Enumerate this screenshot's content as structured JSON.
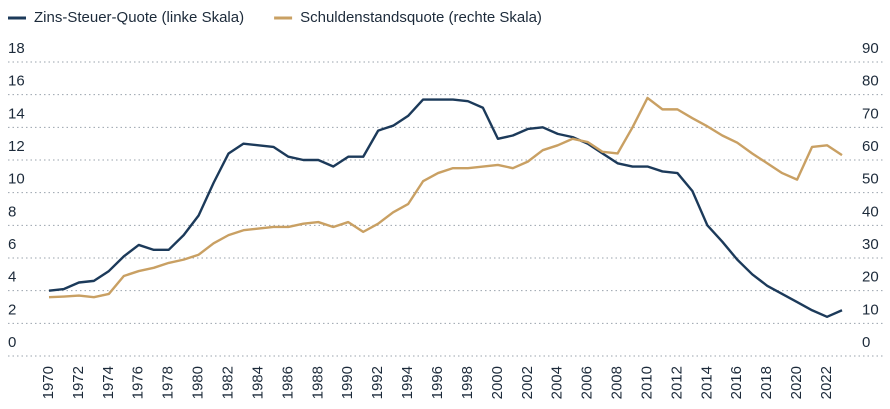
{
  "chart_data": {
    "type": "line",
    "x": [
      1970,
      1971,
      1972,
      1973,
      1974,
      1975,
      1976,
      1977,
      1978,
      1979,
      1980,
      1981,
      1982,
      1983,
      1984,
      1985,
      1986,
      1987,
      1988,
      1989,
      1990,
      1991,
      1992,
      1993,
      1994,
      1995,
      1996,
      1997,
      1998,
      1999,
      2000,
      2001,
      2002,
      2003,
      2004,
      2005,
      2006,
      2007,
      2008,
      2009,
      2010,
      2011,
      2012,
      2013,
      2014,
      2015,
      2016,
      2017,
      2018,
      2019,
      2020,
      2021,
      2022,
      2023
    ],
    "xlim": [
      1970,
      2023
    ],
    "xticks": [
      1970,
      1972,
      1974,
      1976,
      1978,
      1980,
      1982,
      1984,
      1986,
      1988,
      1990,
      1992,
      1994,
      1996,
      1998,
      2000,
      2002,
      2004,
      2006,
      2008,
      2010,
      2012,
      2014,
      2016,
      2018,
      2020,
      2022
    ],
    "ylim": [
      0,
      18
    ],
    "yticks": [
      0,
      2,
      4,
      6,
      8,
      10,
      12,
      14,
      16,
      18
    ],
    "y2lim": [
      0,
      90
    ],
    "y2ticks": [
      0,
      10,
      20,
      30,
      40,
      50,
      60,
      70,
      80,
      90
    ],
    "grid": true,
    "legend": "top",
    "series": [
      {
        "name": "Zins-Steuer-Quote (linke Skala)",
        "color": "#1c3a5a",
        "axis": "y",
        "values": [
          4.0,
          4.1,
          4.5,
          4.6,
          5.2,
          6.1,
          6.8,
          6.5,
          6.5,
          7.4,
          8.6,
          10.6,
          12.4,
          13.0,
          12.9,
          12.8,
          12.2,
          12.0,
          12.0,
          11.6,
          12.2,
          12.2,
          13.8,
          14.1,
          14.7,
          15.7,
          15.7,
          15.7,
          15.6,
          15.2,
          13.3,
          13.5,
          13.9,
          14.0,
          13.6,
          13.4,
          13.0,
          12.4,
          11.8,
          11.6,
          11.6,
          11.3,
          11.2,
          10.1,
          8.0,
          7.0,
          5.9,
          5.0,
          4.3,
          3.8,
          3.3,
          2.8,
          2.4,
          2.8
        ]
      },
      {
        "name": "Schuldenstandsquote (rechte Skala)",
        "color": "#c9a063",
        "axis": "y2",
        "values": [
          18.0,
          18.2,
          18.5,
          18.0,
          19.0,
          24.5,
          26.0,
          27.0,
          28.5,
          29.5,
          31.0,
          34.5,
          37.0,
          38.5,
          39.0,
          39.5,
          39.5,
          40.5,
          41.0,
          39.5,
          41.0,
          38.0,
          40.5,
          44.0,
          46.5,
          53.5,
          56.0,
          57.5,
          57.5,
          58.0,
          58.5,
          57.5,
          59.5,
          63.0,
          64.5,
          66.5,
          65.5,
          62.5,
          62.0,
          70.0,
          79.0,
          75.5,
          75.5,
          72.8,
          70.3,
          67.5,
          65.3,
          62.0,
          59.0,
          56.0,
          54.0,
          64.0,
          64.5,
          61.5
        ]
      }
    ]
  }
}
